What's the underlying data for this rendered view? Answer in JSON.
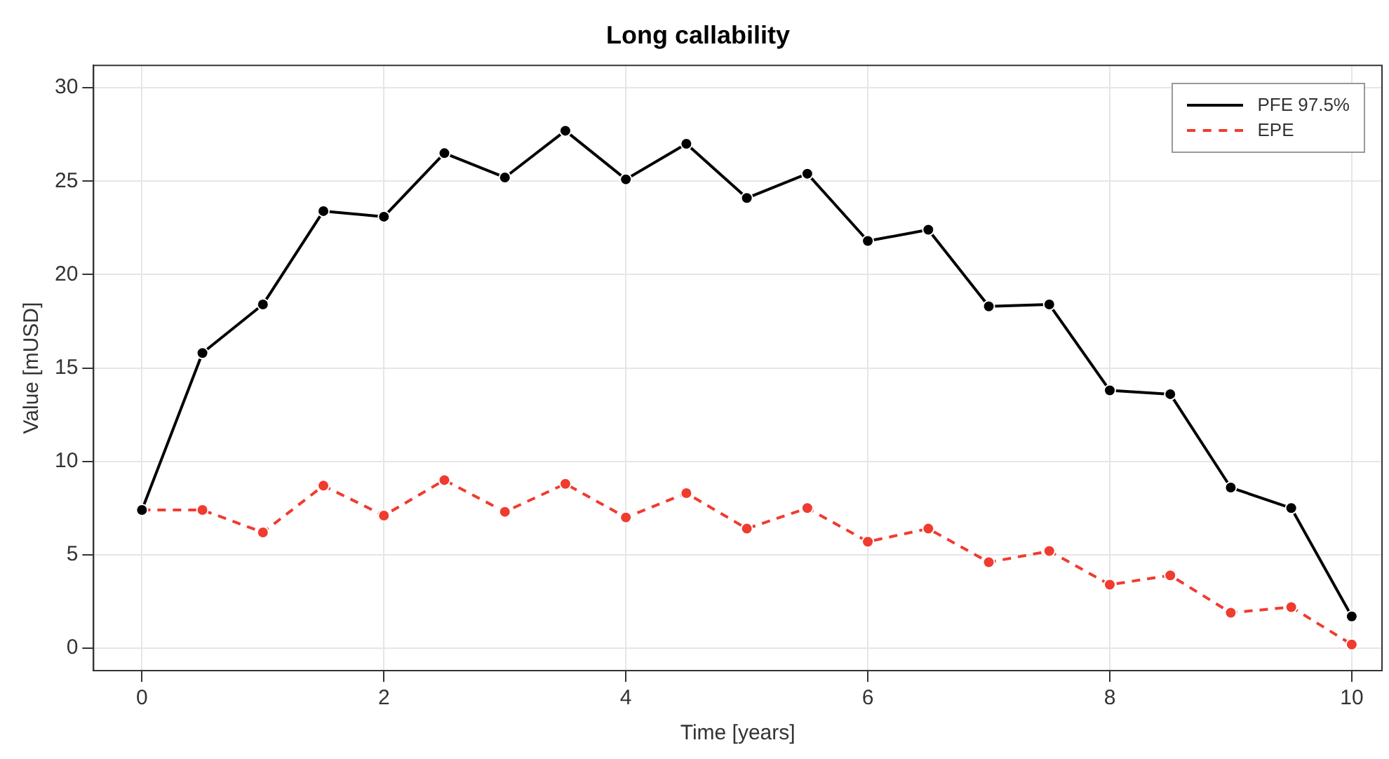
{
  "chart_data": {
    "type": "line",
    "title": "Long callability",
    "xlabel": "Time [years]",
    "ylabel": "Value [mUSD]",
    "x": [
      0,
      0.5,
      1,
      1.5,
      2,
      2.5,
      3,
      3.5,
      4,
      4.5,
      5,
      5.5,
      6,
      6.5,
      7,
      7.5,
      8,
      8.5,
      9,
      9.5,
      10
    ],
    "series": [
      {
        "name": "PFE 97.5%",
        "color": "#000000",
        "line_style": "solid",
        "values": [
          7.4,
          15.8,
          18.4,
          23.4,
          23.1,
          26.5,
          25.2,
          27.7,
          25.1,
          27.0,
          24.1,
          25.4,
          21.8,
          22.4,
          18.3,
          18.4,
          13.8,
          13.6,
          8.6,
          7.5,
          1.7
        ]
      },
      {
        "name": "EPE",
        "color": "#f03b2f",
        "line_style": "dashed",
        "values": [
          7.4,
          7.4,
          6.2,
          8.7,
          7.1,
          9.0,
          7.3,
          8.8,
          7.0,
          8.3,
          6.4,
          7.5,
          5.7,
          6.4,
          4.6,
          5.2,
          3.4,
          3.9,
          1.9,
          2.2,
          0.2
        ]
      }
    ],
    "xlim": [
      -0.4,
      10.25
    ],
    "xticks": [
      0,
      2,
      4,
      6,
      8,
      10
    ],
    "ylim": [
      -1.2,
      31.2
    ],
    "yticks": [
      0,
      5,
      10,
      15,
      20,
      25,
      30
    ],
    "grid": true,
    "legend": "top right",
    "marker": "circle"
  }
}
